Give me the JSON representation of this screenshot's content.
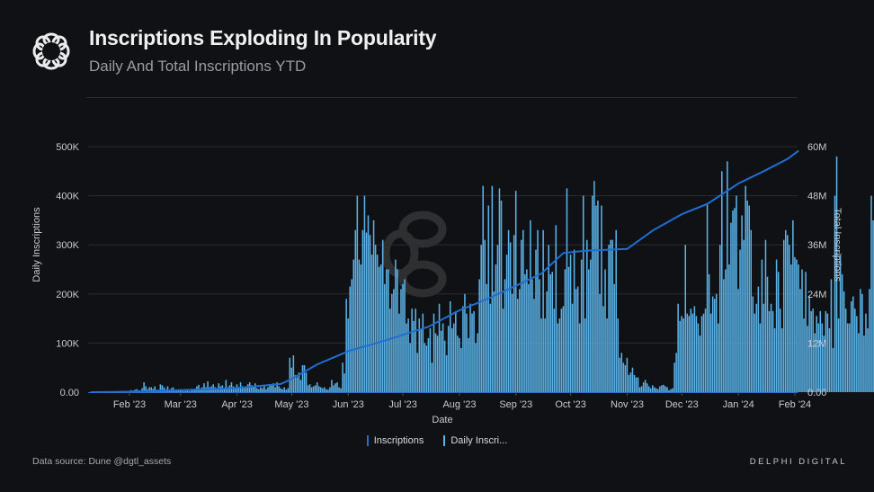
{
  "header": {
    "title": "Inscriptions Exploding In Popularity",
    "subtitle": "Daily And Total Inscriptions YTD",
    "logo_icon": "delphi-knot-logo-icon"
  },
  "legend": {
    "items": [
      {
        "label": "Inscriptions",
        "color": "#1f6fd1"
      },
      {
        "label": "Daily Inscri...",
        "color": "#5ab4ea"
      }
    ]
  },
  "footer": {
    "source": "Data source: Dune @dgtl_assets",
    "brand": "DELPHI DIGITAL"
  },
  "chart_data": {
    "type": "bar+line",
    "title": "Inscriptions Exploding In Popularity",
    "subtitle": "Daily And Total Inscriptions YTD",
    "xlabel": "Date",
    "ylabel_left": "Daily Inscriptions",
    "ylabel_right": "Total Inscriptions",
    "ylim_left": [
      0,
      500000
    ],
    "ylim_right": [
      0,
      60000000
    ],
    "left_ticks": [
      "0.00",
      "100K",
      "200K",
      "300K",
      "400K",
      "500K"
    ],
    "right_ticks": [
      "0.00",
      "12M",
      "24M",
      "36M",
      "48M",
      "60M"
    ],
    "x_ticks": [
      "Feb '23",
      "Mar '23",
      "Apr '23",
      "May '23",
      "Jun '23",
      "Jul '23",
      "Aug '23",
      "Sep '23",
      "Oct '23",
      "Nov '23",
      "Dec '23",
      "Jan '24",
      "Feb '24"
    ],
    "x_start": "2023-01-11",
    "x_end": "2024-02-03",
    "grid": true,
    "legend_position": "bottom",
    "series": [
      {
        "name": "Daily Inscriptions",
        "type": "bar",
        "axis": "left",
        "color": "#5ab4ea",
        "unit": "thousands",
        "start_date": "2023-01-11",
        "values": [
          1,
          1,
          1,
          1,
          1,
          1,
          1,
          1,
          1,
          1,
          1,
          1,
          1,
          1,
          1,
          1,
          1,
          1,
          1,
          2,
          2,
          3,
          4,
          3,
          5,
          6,
          4,
          3,
          8,
          20,
          12,
          6,
          10,
          10,
          7,
          12,
          5,
          5,
          16,
          14,
          10,
          6,
          12,
          4,
          8,
          10,
          4,
          3,
          5,
          6,
          3,
          2,
          4,
          3,
          2,
          5,
          6,
          7,
          12,
          15,
          8,
          10,
          18,
          10,
          22,
          10,
          12,
          16,
          10,
          8,
          18,
          12,
          14,
          6,
          25,
          10,
          14,
          20,
          12,
          10,
          16,
          8,
          20,
          12,
          8,
          12,
          16,
          20,
          14,
          10,
          18,
          8,
          6,
          10,
          8,
          12,
          6,
          10,
          14,
          16,
          18,
          10,
          20,
          12,
          8,
          6,
          10,
          5,
          8,
          70,
          50,
          75,
          35,
          30,
          40,
          25,
          55,
          55,
          40,
          14,
          16,
          10,
          12,
          14,
          20,
          12,
          10,
          8,
          10,
          6,
          5,
          10,
          25,
          14,
          18,
          20,
          10,
          8,
          60,
          38,
          190,
          150,
          215,
          230,
          270,
          330,
          400,
          270,
          260,
          330,
          400,
          325,
          360,
          320,
          280,
          350,
          300,
          280,
          255,
          260,
          310,
          220,
          250,
          250,
          170,
          200,
          210,
          270,
          250,
          160,
          210,
          220,
          230,
          140,
          150,
          100,
          170,
          145,
          170,
          80,
          150,
          130,
          160,
          100,
          95,
          110,
          130,
          60,
          160,
          120,
          115,
          180,
          125,
          140,
          105,
          75,
          135,
          185,
          130,
          140,
          165,
          115,
          110,
          90,
          175,
          200,
          160,
          110,
          180,
          160,
          165,
          100,
          120,
          230,
          300,
          420,
          310,
          220,
          380,
          180,
          420,
          205,
          260,
          300,
          415,
          390,
          170,
          230,
          280,
          330,
          305,
          200,
          320,
          410,
          190,
          210,
          310,
          330,
          240,
          250,
          220,
          350,
          230,
          190,
          290,
          330,
          230,
          150,
          330,
          150,
          205,
          300,
          240,
          245,
          170,
          340,
          140,
          150,
          170,
          175,
          250,
          415,
          255,
          280,
          180,
          290,
          210,
          215,
          140,
          270,
          400,
          150,
          310,
          250,
          270,
          400,
          430,
          380,
          390,
          200,
          380,
          175,
          250,
          150,
          300,
          310,
          310,
          220,
          330,
          150,
          70,
          80,
          60,
          55,
          70,
          35,
          40,
          50,
          35,
          30,
          30,
          10,
          12,
          20,
          25,
          18,
          12,
          8,
          14,
          10,
          8,
          6,
          12,
          14,
          15,
          12,
          10,
          4,
          6,
          8,
          60,
          80,
          180,
          145,
          155,
          150,
          300,
          160,
          155,
          170,
          160,
          175,
          155,
          140,
          115,
          155,
          160,
          170,
          385,
          240,
          160,
          195,
          190,
          200,
          140,
          300,
          450,
          230,
          250,
          470,
          260,
          345,
          370,
          375,
          400,
          210,
          290,
          360,
          310,
          420,
          390,
          380,
          330,
          195,
          160,
          180,
          215,
          140,
          270,
          180,
          310,
          235,
          165,
          180,
          165,
          130,
          270,
          245,
          170,
          130,
          310,
          330,
          320,
          300,
          260,
          350,
          275,
          270,
          260,
          210,
          250,
          150,
          245,
          135,
          195,
          165,
          170,
          120,
          155,
          140,
          165,
          140,
          115,
          165,
          160,
          130,
          230,
          90,
          400,
          480,
          150,
          280,
          240,
          205,
          170,
          140,
          140,
          185,
          195,
          170,
          155,
          120,
          210,
          200,
          115,
          160,
          130,
          210,
          400,
          350,
          290,
          225,
          160,
          130,
          125,
          100
        ]
      },
      {
        "name": "Inscriptions",
        "type": "line",
        "axis": "right",
        "color": "#1f6fd1",
        "unit": "millions",
        "points": [
          {
            "date": "2023-01-11",
            "value": 0.0
          },
          {
            "date": "2023-02-01",
            "value": 0.1
          },
          {
            "date": "2023-03-01",
            "value": 0.5
          },
          {
            "date": "2023-04-01",
            "value": 1.0
          },
          {
            "date": "2023-04-25",
            "value": 2.0
          },
          {
            "date": "2023-05-01",
            "value": 3.2
          },
          {
            "date": "2023-05-15",
            "value": 6.8
          },
          {
            "date": "2023-06-01",
            "value": 10.0
          },
          {
            "date": "2023-06-15",
            "value": 11.8
          },
          {
            "date": "2023-07-01",
            "value": 14.0
          },
          {
            "date": "2023-07-15",
            "value": 16.0
          },
          {
            "date": "2023-08-01",
            "value": 20.0
          },
          {
            "date": "2023-08-15",
            "value": 22.5
          },
          {
            "date": "2023-09-01",
            "value": 26.0
          },
          {
            "date": "2023-09-15",
            "value": 29.0
          },
          {
            "date": "2023-09-27",
            "value": 34.0
          },
          {
            "date": "2023-10-10",
            "value": 34.6
          },
          {
            "date": "2023-11-01",
            "value": 35.0
          },
          {
            "date": "2023-11-15",
            "value": 39.5
          },
          {
            "date": "2023-12-01",
            "value": 43.5
          },
          {
            "date": "2023-12-15",
            "value": 46.0
          },
          {
            "date": "2024-01-01",
            "value": 51.0
          },
          {
            "date": "2024-01-15",
            "value": 54.0
          },
          {
            "date": "2024-01-28",
            "value": 57.0
          },
          {
            "date": "2024-02-03",
            "value": 59.0
          }
        ]
      }
    ]
  }
}
